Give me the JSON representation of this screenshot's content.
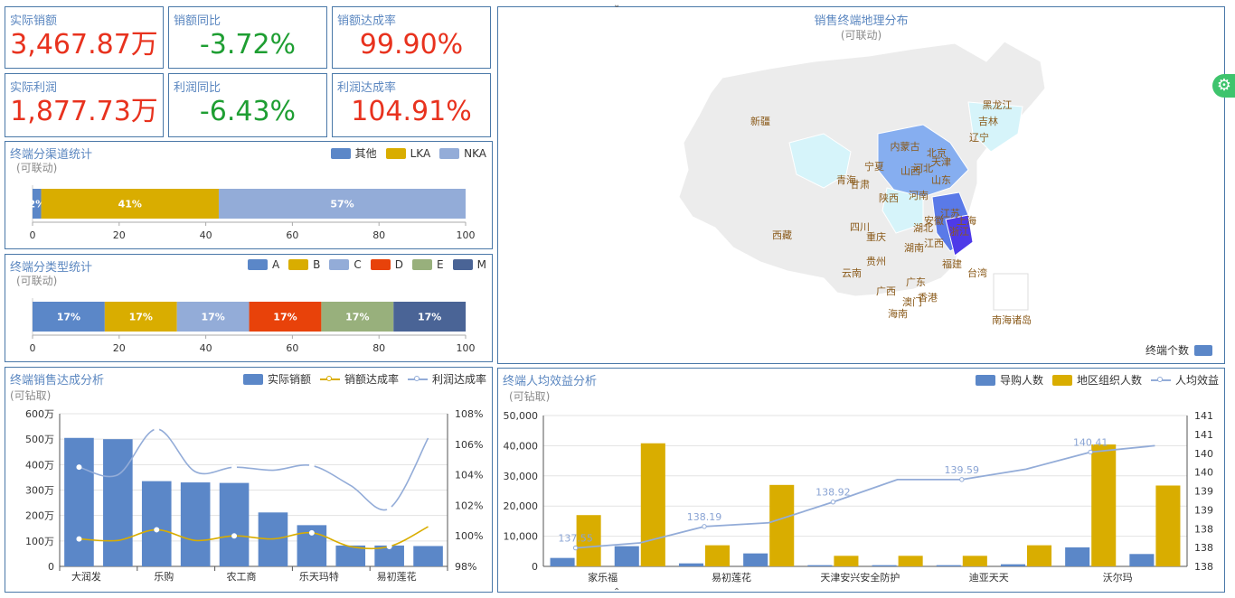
{
  "kpis": [
    {
      "label": "实际销额",
      "value": "3,467.87万",
      "color": "#e8321e"
    },
    {
      "label": "销额同比",
      "value": "-3.72%",
      "color": "#1e9e32"
    },
    {
      "label": "销额达成率",
      "value": "99.90%",
      "color": "#e8321e"
    },
    {
      "label": "实际利润",
      "value": "1,877.73万",
      "color": "#e8321e"
    },
    {
      "label": "利润同比",
      "value": "-6.43%",
      "color": "#1e9e32"
    },
    {
      "label": "利润达成率",
      "value": "104.91%",
      "color": "#e8321e"
    }
  ],
  "channel": {
    "title": "终端分渠道统计",
    "subtitle": "(可联动)",
    "legend": [
      "其他",
      "LKA",
      "NKA"
    ],
    "colors": [
      "#5b87c8",
      "#d9ad00",
      "#93acd8"
    ],
    "chart_data": {
      "type": "bar",
      "orientation": "horizontal-stacked",
      "categories": [
        "其他",
        "LKA",
        "NKA"
      ],
      "values": [
        2,
        41,
        57
      ],
      "labels": [
        "2%",
        "41%",
        "57%"
      ],
      "xlim": [
        0,
        100
      ],
      "ticks": [
        "0",
        "20",
        "40",
        "60",
        "80",
        "100"
      ]
    }
  },
  "type_stat": {
    "title": "终端分类型统计",
    "subtitle": "(可联动)",
    "legend": [
      "A",
      "B",
      "C",
      "D",
      "E",
      "M"
    ],
    "colors": [
      "#5b87c8",
      "#d9ad00",
      "#93acd8",
      "#e8420a",
      "#98b07c",
      "#4a6496"
    ],
    "chart_data": {
      "type": "bar",
      "orientation": "horizontal-stacked",
      "categories": [
        "A",
        "B",
        "C",
        "D",
        "E",
        "M"
      ],
      "values": [
        16.67,
        16.67,
        16.67,
        16.67,
        16.67,
        16.67
      ],
      "labels": [
        "17%",
        "17%",
        "17%",
        "17%",
        "17%",
        "17%"
      ],
      "xlim": [
        0,
        100
      ],
      "ticks": [
        "0",
        "20",
        "40",
        "60",
        "80",
        "100"
      ]
    }
  },
  "sales": {
    "title": "终端销售达成分析",
    "subtitle": "(可钻取)",
    "legend": [
      "实际销额",
      "销额达成率",
      "利润达成率"
    ],
    "colors": [
      "#5b87c8",
      "#d9ad00",
      "#93acd8"
    ],
    "chart_data": {
      "type": "bar",
      "categories": [
        "大润发",
        "",
        "乐购",
        "",
        "农工商",
        "",
        "乐天玛特",
        "",
        "易初莲花",
        ""
      ],
      "xlabels": [
        "大润发",
        "乐购",
        "农工商",
        "乐天玛特",
        "易初莲花"
      ],
      "series": [
        {
          "name": "实际销额",
          "type": "bar",
          "axis": "left",
          "values": [
            505,
            500,
            335,
            330,
            328,
            212,
            162,
            82,
            82,
            80
          ]
        },
        {
          "name": "销额达成率",
          "type": "line",
          "axis": "right",
          "values": [
            99.8,
            99.7,
            100.4,
            99.7,
            100.0,
            99.8,
            100.2,
            99.3,
            99.3,
            100.6
          ]
        },
        {
          "name": "利润达成率",
          "type": "line",
          "axis": "right",
          "values": [
            104.5,
            104.0,
            107.0,
            104.2,
            104.5,
            104.3,
            104.6,
            103.3,
            101.8,
            106.4
          ]
        }
      ],
      "ylim_left": [
        0,
        600
      ],
      "ylim_right": [
        98,
        108
      ],
      "yticks_left": [
        "0",
        "100万",
        "200万",
        "300万",
        "400万",
        "500万",
        "600万"
      ],
      "yticks_right": [
        "98%",
        "100%",
        "102%",
        "104%",
        "106%",
        "108%"
      ],
      "marked_points": {
        "销额达成率": [
          0,
          2,
          4,
          6,
          8
        ],
        "利润达成率": [
          0,
          2,
          4,
          6,
          8
        ]
      }
    }
  },
  "efficiency": {
    "title": "终端人均效益分析",
    "subtitle": "(可钻取)",
    "legend": [
      "导购人数",
      "地区组织人数",
      "人均效益"
    ],
    "colors": [
      "#5b87c8",
      "#d9ad00",
      "#93acd8"
    ],
    "chart_data": {
      "type": "bar",
      "categories": [
        "家乐福",
        "",
        "易初莲花",
        "",
        "天津安兴安全防护",
        "",
        "迪亚天天",
        "",
        "沃尔玛",
        ""
      ],
      "xlabels": [
        "家乐福",
        "易初莲花",
        "天津安兴安全防护",
        "迪亚天天",
        "沃尔玛"
      ],
      "series": [
        {
          "name": "导购人数",
          "type": "bar",
          "axis": "left",
          "values": [
            2800,
            6700,
            1000,
            4300,
            400,
            400,
            400,
            700,
            6300,
            4100
          ]
        },
        {
          "name": "地区组织人数",
          "type": "bar",
          "axis": "left",
          "values": [
            17000,
            40800,
            7000,
            27000,
            3500,
            3500,
            3500,
            7000,
            40400,
            26800
          ]
        },
        {
          "name": "人均效益",
          "type": "line",
          "axis": "right",
          "values": [
            137.55,
            137.7,
            138.19,
            138.3,
            138.92,
            139.59,
            139.59,
            139.9,
            140.41,
            140.6
          ]
        }
      ],
      "ylim_left": [
        0,
        50000
      ],
      "ylim_right": [
        137,
        141.5
      ],
      "yticks_left": [
        "0",
        "10,000",
        "20,000",
        "30,000",
        "40,000",
        "50,000"
      ],
      "yticks_right": [
        "138",
        "138",
        "138",
        "139",
        "139",
        "140",
        "140",
        "141",
        "141"
      ],
      "point_labels": [
        "137.55",
        "138.19",
        "138.92",
        "139.59",
        "140.41"
      ]
    }
  },
  "map": {
    "title": "销售终端地理分布",
    "subtitle": "(可联动)",
    "legend_label": "终端个数",
    "provinces": [
      "新疆",
      "西藏",
      "青海",
      "甘肃",
      "宁夏",
      "内蒙古",
      "黑龙江",
      "吉林",
      "辽宁",
      "北京",
      "天津",
      "河北",
      "山西",
      "山东",
      "陕西",
      "河南",
      "江苏",
      "安徽",
      "上海",
      "浙江",
      "湖北",
      "四川",
      "重庆",
      "湖南",
      "江西",
      "福建",
      "台湾",
      "贵州",
      "云南",
      "广西",
      "广东",
      "香港",
      "澳门",
      "海南",
      "南海诸岛"
    ],
    "province_colors": {
      "default": "#ececec",
      "light": "#d6f4fa",
      "mid": "#86aef0",
      "strong": "#5a7ae8",
      "deep": "#4e3ae8"
    }
  }
}
